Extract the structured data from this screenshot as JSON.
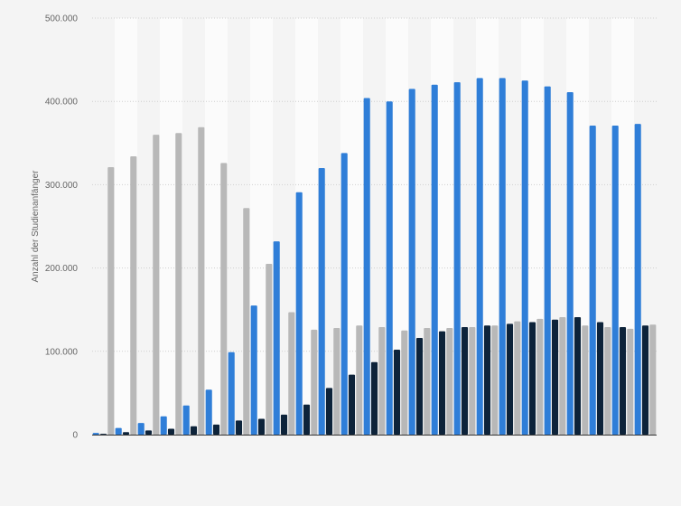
{
  "chart_data": {
    "type": "bar",
    "ylabel": "Anzahl der Studienanfänger",
    "xlabel": "",
    "ylim": [
      0,
      500000
    ],
    "yticks": [
      0,
      100000,
      200000,
      300000,
      400000,
      500000
    ],
    "ytick_labels": [
      "0",
      "100.000",
      "200.000",
      "300.000",
      "400.000",
      "500.000"
    ],
    "grid": true,
    "legend": "none",
    "categories": [
      "",
      "",
      "",
      "",
      "",
      "",
      "",
      "",
      "",
      "",
      "",
      "",
      "",
      "",
      "",
      "",
      "",
      "",
      "",
      "",
      "",
      "",
      "",
      "",
      ""
    ],
    "series": [
      {
        "color": "#2f7ed8",
        "values": [
          2000,
          8000,
          14000,
          22000,
          35000,
          54000,
          99000,
          155000,
          232000,
          291000,
          320000,
          338000,
          404000,
          400000,
          415000,
          420000,
          423000,
          428000,
          428000,
          425000,
          418000,
          411000,
          371000,
          371000,
          373000
        ]
      },
      {
        "color": "#0d233a",
        "values": [
          1000,
          3000,
          5000,
          7000,
          10000,
          12000,
          17000,
          19000,
          24000,
          36000,
          56000,
          72000,
          87000,
          102000,
          116000,
          124000,
          129000,
          131000,
          133000,
          135000,
          138000,
          141000,
          135000,
          129000,
          131000
        ]
      },
      {
        "color": "#b8b8b8",
        "values": [
          321000,
          334000,
          360000,
          362000,
          369000,
          326000,
          272000,
          205000,
          147000,
          126000,
          128000,
          131000,
          129000,
          125000,
          128000,
          128000,
          129000,
          131000,
          136000,
          139000,
          141000,
          131000,
          129000,
          127000,
          132000
        ]
      }
    ]
  }
}
